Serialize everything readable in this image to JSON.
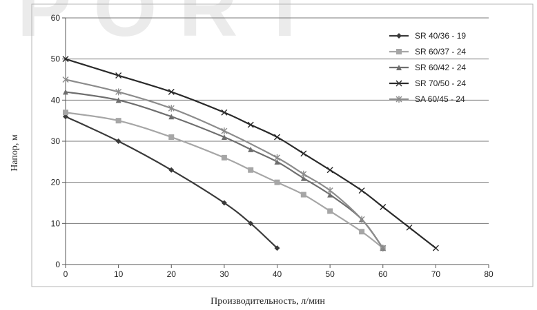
{
  "chart_data": {
    "type": "line",
    "title": "",
    "xlabel": "Производительность, л/мин",
    "ylabel": "Напор, м",
    "xlim": [
      0,
      80
    ],
    "ylim": [
      0,
      60
    ],
    "xticks": [
      0,
      10,
      20,
      30,
      40,
      50,
      60,
      70,
      80
    ],
    "yticks": [
      0,
      10,
      20,
      30,
      40,
      50,
      60
    ],
    "grid": "horizontal",
    "legend_position": "top-right",
    "series": [
      {
        "name": "SR 40/36 - 19",
        "color": "#3a3a3a",
        "marker": "diamond",
        "x": [
          0,
          10,
          20,
          30,
          35,
          40
        ],
        "y": [
          36,
          30,
          23,
          15,
          10,
          4
        ]
      },
      {
        "name": "SR 60/37 - 24",
        "color": "#a6a6a6",
        "marker": "square",
        "x": [
          0,
          10,
          20,
          30,
          35,
          40,
          45,
          50,
          56,
          60
        ],
        "y": [
          37,
          35,
          31,
          26,
          23,
          20,
          17,
          13,
          8,
          4
        ]
      },
      {
        "name": "SR 60/42 - 24",
        "color": "#6e6e6e",
        "marker": "triangle",
        "x": [
          0,
          10,
          20,
          30,
          35,
          40,
          45,
          50,
          56,
          60
        ],
        "y": [
          42,
          40,
          36,
          31,
          28,
          25,
          21,
          17,
          11,
          4
        ]
      },
      {
        "name": "SR 70/50 - 24",
        "color": "#2a2a2a",
        "marker": "x",
        "x": [
          0,
          10,
          20,
          30,
          35,
          40,
          45,
          50,
          56,
          60,
          65,
          70
        ],
        "y": [
          50,
          46,
          42,
          37,
          34,
          31,
          27,
          23,
          18,
          14,
          9,
          4
        ]
      },
      {
        "name": "SA 60/45 - 24",
        "color": "#8c8c8c",
        "marker": "star",
        "x": [
          0,
          10,
          20,
          30,
          40,
          45,
          50,
          56,
          60
        ],
        "y": [
          45,
          42,
          38,
          32.5,
          26,
          22,
          18,
          11,
          4
        ]
      }
    ]
  },
  "watermark": {
    "text": "IPORT",
    "color": "#ebebeb"
  }
}
